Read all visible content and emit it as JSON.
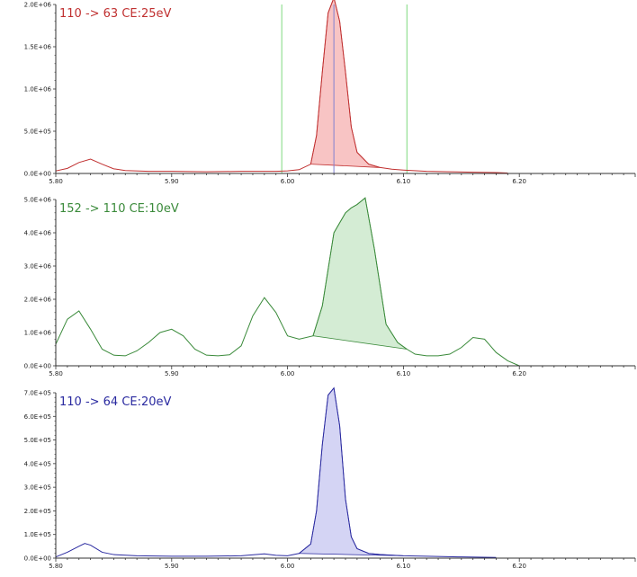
{
  "chart_data": [
    {
      "type": "area",
      "title": "110 -> 63 CE:25eV",
      "color": "#c03030",
      "fill": "#f8c4c4",
      "xlim": [
        5.8,
        6.3
      ],
      "ylim": [
        0,
        2000000
      ],
      "x_ticks": [
        "5.80",
        "5.90",
        "6.00",
        "6.10",
        "6.20"
      ],
      "y_ticks": [
        "0.0E+00",
        "5.0E+05",
        "1.0E+06",
        "1.5E+06",
        "2.0E+06"
      ],
      "markers": [
        5.995,
        6.04,
        6.103
      ],
      "marker_colors": [
        "#7ed87e",
        "#8080d0",
        "#7ed87e"
      ],
      "integration": [
        6.02,
        6.08
      ],
      "x": [
        5.8,
        5.81,
        5.82,
        5.83,
        5.84,
        5.85,
        5.86,
        5.88,
        5.9,
        5.93,
        5.96,
        5.99,
        6.0,
        6.01,
        6.02,
        6.025,
        6.03,
        6.035,
        6.04,
        6.045,
        6.05,
        6.055,
        6.06,
        6.07,
        6.08,
        6.09,
        6.1,
        6.12,
        6.14,
        6.16,
        6.18,
        6.19
      ],
      "y": [
        30000,
        60000,
        130000,
        170000,
        110000,
        55000,
        35000,
        25000,
        25000,
        20000,
        25000,
        25000,
        30000,
        45000,
        110000,
        450000,
        1200000,
        1900000,
        2080000,
        1800000,
        1200000,
        550000,
        250000,
        110000,
        70000,
        50000,
        40000,
        25000,
        20000,
        15000,
        10000,
        5000
      ]
    },
    {
      "type": "area",
      "title": "152 -> 110 CE:10eV",
      "color": "#3a8a3a",
      "fill": "#d4ecd4",
      "xlim": [
        5.8,
        6.3
      ],
      "ylim": [
        0,
        5000000
      ],
      "x_ticks": [
        "5.80",
        "5.90",
        "6.00",
        "6.10",
        "6.20"
      ],
      "y_ticks": [
        "0.0E+00",
        "1.0E+06",
        "2.0E+06",
        "3.0E+06",
        "4.0E+06",
        "5.0E+06"
      ],
      "markers": [],
      "marker_colors": [],
      "integration": [
        6.022,
        6.103
      ],
      "x": [
        5.8,
        5.81,
        5.82,
        5.83,
        5.84,
        5.85,
        5.86,
        5.87,
        5.88,
        5.89,
        5.9,
        5.91,
        5.92,
        5.93,
        5.94,
        5.95,
        5.96,
        5.97,
        5.98,
        5.99,
        6.0,
        6.01,
        6.022,
        6.03,
        6.035,
        6.04,
        6.045,
        6.05,
        6.055,
        6.06,
        6.067,
        6.075,
        6.085,
        6.095,
        6.103,
        6.11,
        6.12,
        6.13,
        6.14,
        6.15,
        6.16,
        6.17,
        6.18,
        6.19,
        6.2
      ],
      "y": [
        650000,
        1400000,
        1650000,
        1100000,
        500000,
        320000,
        300000,
        450000,
        700000,
        1000000,
        1100000,
        900000,
        500000,
        320000,
        300000,
        330000,
        600000,
        1500000,
        2050000,
        1600000,
        900000,
        800000,
        900000,
        1800000,
        2900000,
        4000000,
        4300000,
        4600000,
        4750000,
        4850000,
        5050000,
        3500000,
        1250000,
        700000,
        500000,
        350000,
        300000,
        300000,
        350000,
        550000,
        850000,
        800000,
        400000,
        150000,
        0
      ]
    },
    {
      "type": "area",
      "title": "110 -> 64 CE:20eV",
      "color": "#2a2aa0",
      "fill": "#d4d4f4",
      "xlim": [
        5.8,
        6.3
      ],
      "ylim": [
        0,
        700000
      ],
      "x_ticks": [
        "5.80",
        "5.90",
        "6.00",
        "6.10",
        "6.20"
      ],
      "y_ticks": [
        "0.0E+00",
        "1.0E+05",
        "2.0E+05",
        "3.0E+05",
        "4.0E+05",
        "5.0E+05",
        "6.0E+05",
        "7.0E+05"
      ],
      "markers": [],
      "marker_colors": [],
      "integration": [
        6.01,
        6.1
      ],
      "x": [
        5.8,
        5.81,
        5.82,
        5.825,
        5.83,
        5.84,
        5.85,
        5.87,
        5.9,
        5.93,
        5.96,
        5.98,
        5.99,
        6.0,
        6.01,
        6.02,
        6.025,
        6.03,
        6.035,
        6.04,
        6.045,
        6.05,
        6.055,
        6.06,
        6.07,
        6.08,
        6.1,
        6.12,
        6.15,
        6.18
      ],
      "y": [
        5000,
        25000,
        50000,
        62000,
        55000,
        25000,
        15000,
        10000,
        8000,
        8000,
        10000,
        18000,
        12000,
        10000,
        20000,
        60000,
        200000,
        480000,
        690000,
        720000,
        560000,
        250000,
        90000,
        40000,
        20000,
        15000,
        10000,
        8000,
        5000,
        3000
      ]
    }
  ]
}
